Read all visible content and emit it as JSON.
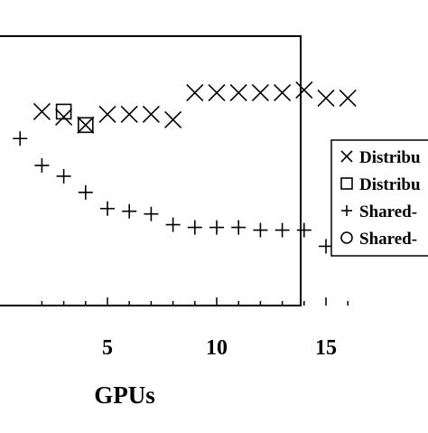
{
  "chart_data": {
    "type": "scatter",
    "title": "",
    "xlabel": "GPUs",
    "ylabel": "",
    "xlim": [
      0,
      17
    ],
    "ylim": [
      0,
      10
    ],
    "x_ticks": [
      5,
      10,
      15
    ],
    "x_tick_labels": [
      "5",
      "10",
      "15"
    ],
    "grid": false,
    "legend_position": "right",
    "series": [
      {
        "name": "Distribu",
        "marker": "x",
        "x": [
          2,
          3,
          4,
          5,
          6,
          7,
          8,
          9,
          10,
          11,
          12,
          13,
          14,
          15,
          16
        ],
        "y": [
          7.2,
          7.0,
          6.7,
          7.1,
          7.1,
          7.1,
          6.9,
          7.9,
          7.9,
          7.9,
          7.9,
          7.9,
          8.0,
          7.7,
          7.7
        ]
      },
      {
        "name": "Distribu",
        "marker": "square",
        "x": [
          3,
          4
        ],
        "y": [
          7.2,
          6.7
        ]
      },
      {
        "name": "Shared-",
        "marker": "plus",
        "x": [
          1,
          2,
          3,
          4,
          5,
          6,
          7,
          8,
          9,
          10,
          11,
          12,
          13,
          14,
          15,
          16
        ],
        "y": [
          6.2,
          5.2,
          4.8,
          4.2,
          3.6,
          3.5,
          3.4,
          3.0,
          2.9,
          2.9,
          2.9,
          2.8,
          2.8,
          2.8,
          2.2,
          2.2
        ]
      },
      {
        "name": "Shared-",
        "marker": "circle",
        "x": [],
        "y": []
      }
    ]
  }
}
